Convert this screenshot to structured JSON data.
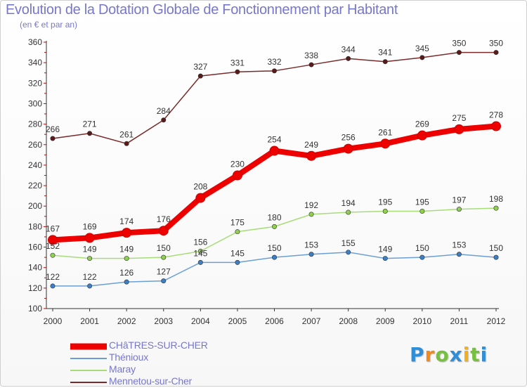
{
  "header": {
    "title": "Evolution de la Dotation Globale de Fonctionnement par Habitant",
    "subtitle": "(en € et par an)"
  },
  "chart_data": {
    "type": "line",
    "title": "Evolution de la Dotation Globale de Fonctionnement par Habitant",
    "subtitle": "(en € et par an)",
    "xlabel": "",
    "ylabel": "",
    "ylim": [
      100,
      360
    ],
    "yticks": [
      100,
      120,
      140,
      160,
      180,
      200,
      220,
      240,
      260,
      280,
      300,
      320,
      340,
      360
    ],
    "categories": [
      "2000",
      "2001",
      "2002",
      "2003",
      "2004",
      "2005",
      "2006",
      "2007",
      "2008",
      "2009",
      "2010",
      "2011",
      "2012"
    ],
    "grid": false,
    "legend_position": "bottom-left",
    "series": [
      {
        "name": "Mennetou-sur-Cher",
        "color": "#7a2a2a",
        "marker": "#5a1a1a",
        "thick": false,
        "values": [
          266,
          271,
          261,
          284,
          327,
          331,
          332,
          338,
          344,
          341,
          345,
          350,
          350
        ]
      },
      {
        "name": "Maray",
        "color": "#a8dc78",
        "marker": "#8fd04e",
        "thick": false,
        "values": [
          152,
          149,
          149,
          150,
          156,
          175,
          180,
          192,
          194,
          195,
          195,
          197,
          198
        ]
      },
      {
        "name": "Thénioux",
        "color": "#6b9fd4",
        "marker": "#3a7fc8",
        "thick": false,
        "values": [
          122,
          122,
          126,
          127,
          145,
          145,
          150,
          153,
          155,
          149,
          150,
          153,
          150
        ]
      },
      {
        "name": "CHâTRES-SUR-CHER",
        "color": "#ee0000",
        "marker": "#ee0000",
        "thick": true,
        "values": [
          167,
          169,
          174,
          176,
          208,
          230,
          254,
          249,
          256,
          261,
          269,
          275,
          278
        ]
      }
    ]
  },
  "legend": {
    "items": [
      {
        "label": "CHâTRES-SUR-CHER",
        "color": "#ee0000",
        "thickness": 9
      },
      {
        "label": "Thénioux",
        "color": "#6b9fd4",
        "thickness": 2
      },
      {
        "label": "Maray",
        "color": "#a8dc78",
        "thickness": 2
      },
      {
        "label": "Mennetou-sur-Cher",
        "color": "#7a2a2a",
        "thickness": 2
      }
    ]
  },
  "logo": {
    "letters": [
      "P",
      "r",
      "o",
      "x",
      "i",
      "t",
      "i"
    ],
    "colors": [
      "#2e8fd8",
      "#f08a20",
      "#78c040",
      "#2e8fd8",
      "#f0b020",
      "#78c040",
      "#2e8fd8"
    ]
  }
}
